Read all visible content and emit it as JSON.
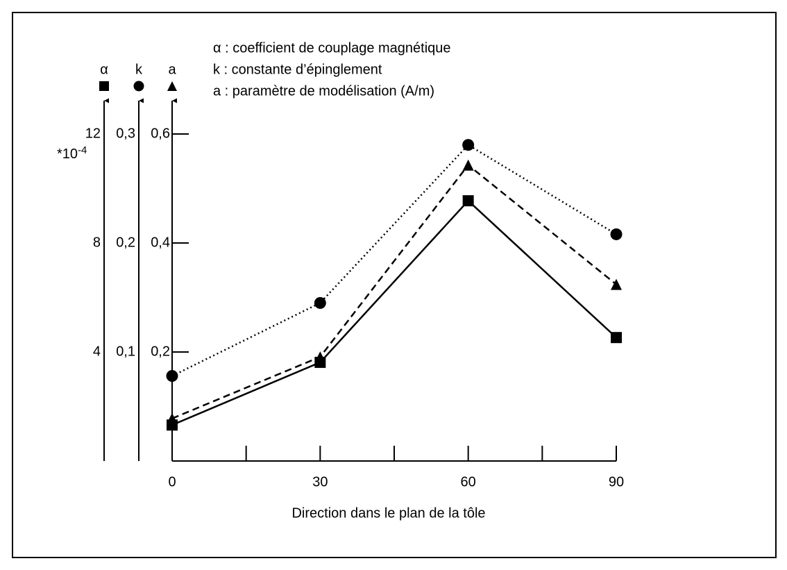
{
  "chart_data": {
    "type": "line",
    "xlabel": "Direction dans le plan de la tôle",
    "x": [
      0,
      30,
      60,
      90
    ],
    "xlim": [
      0,
      90
    ],
    "xticks": [
      0,
      30,
      60,
      90
    ],
    "xminor_ticks": [
      15,
      45,
      75
    ],
    "ylim": [
      0,
      12
    ],
    "yticks": [
      4,
      8,
      12
    ],
    "y2lim": [
      0,
      0.3
    ],
    "y2ticks": [
      {
        "value": 0.1,
        "label": "0,1"
      },
      {
        "value": 0.2,
        "label": "0,2"
      },
      {
        "value": 0.3,
        "label": "0,3"
      }
    ],
    "y3lim": [
      0,
      0.6
    ],
    "y3ticks": [
      {
        "value": 0.2,
        "label": "0,2"
      },
      {
        "value": 0.4,
        "label": "0,4"
      },
      {
        "value": 0.6,
        "label": "0,6"
      }
    ],
    "y_multiplier": {
      "base": "*10",
      "exponent": "-4"
    },
    "axis_headers": [
      "α",
      "k",
      "a"
    ],
    "legend_texts": [
      "α : coefficient de couplage magnétique",
      "k : constante d’épinglement",
      "a : paramètre de modélisation (A/m)"
    ],
    "series": [
      {
        "name": "α",
        "axis": "y",
        "color": "#000000",
        "dash": "solid",
        "marker": "square",
        "values": [
          1.32,
          3.62,
          9.55,
          4.53
        ]
      },
      {
        "name": "k",
        "axis": "y2",
        "color": "#000000",
        "dash": "dotted",
        "marker": "circle",
        "values": [
          0.078,
          0.145,
          0.29,
          0.208
        ]
      },
      {
        "name": "a",
        "axis": "y3",
        "color": "#000000",
        "dash": "dashed",
        "marker": "triangle",
        "values": [
          0.078,
          0.191,
          0.543,
          0.324
        ]
      }
    ]
  }
}
